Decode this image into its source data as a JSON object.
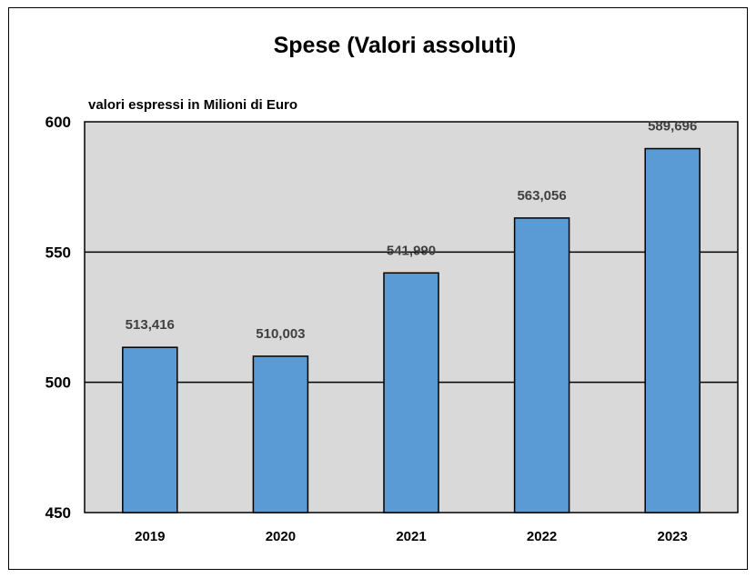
{
  "chart_data": {
    "type": "bar",
    "title": "Spese (Valori assoluti)",
    "subtitle": "valori espressi in Milioni di Euro",
    "categories": [
      "2019",
      "2020",
      "2021",
      "2022",
      "2023"
    ],
    "values": [
      513.416,
      510.003,
      541.99,
      563.056,
      589.696
    ],
    "data_labels": [
      "513,416",
      "510,003",
      "541,990",
      "563,056",
      "589,696"
    ],
    "yticks": [
      450,
      500,
      550,
      600
    ],
    "ylim": [
      450,
      600
    ],
    "grid": true,
    "legend": "none",
    "colors": {
      "bar": "#5b9bd5",
      "plot_bg": "#d9d9d9",
      "grid": "#000000"
    }
  }
}
